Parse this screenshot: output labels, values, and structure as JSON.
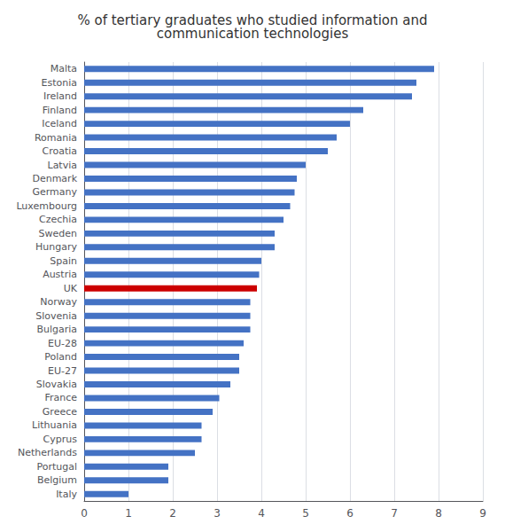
{
  "chart_data": {
    "type": "bar",
    "orientation": "horizontal",
    "title": "% of tertiary graduates who studied information and\ncommunication technologies",
    "categories": [
      "Malta",
      "Estonia",
      "Ireland",
      "Finland",
      "Iceland",
      "Romania",
      "Croatia",
      "Latvia",
      "Denmark",
      "Germany",
      "Luxembourg",
      "Czechia",
      "Sweden",
      "Hungary",
      "Spain",
      "Austria",
      "UK",
      "Norway",
      "Slovenia",
      "Bulgaria",
      "EU-28",
      "Poland",
      "EU-27",
      "Slovakia",
      "France",
      "Greece",
      "Lithuania",
      "Cyprus",
      "Netherlands",
      "Portugal",
      "Belgium",
      "Italy"
    ],
    "values": [
      7.9,
      7.5,
      7.4,
      6.3,
      6.0,
      5.7,
      5.5,
      5.0,
      4.8,
      4.75,
      4.65,
      4.5,
      4.3,
      4.3,
      4.0,
      3.95,
      3.9,
      3.75,
      3.75,
      3.75,
      3.6,
      3.5,
      3.5,
      3.3,
      3.05,
      2.9,
      2.65,
      2.65,
      2.5,
      1.9,
      1.9,
      1.0
    ],
    "colors": [
      "#4472C4",
      "#4472C4",
      "#4472C4",
      "#4472C4",
      "#4472C4",
      "#4472C4",
      "#4472C4",
      "#4472C4",
      "#4472C4",
      "#4472C4",
      "#4472C4",
      "#4472C4",
      "#4472C4",
      "#4472C4",
      "#4472C4",
      "#4472C4",
      "#CC0000",
      "#4472C4",
      "#4472C4",
      "#4472C4",
      "#4472C4",
      "#4472C4",
      "#4472C4",
      "#4472C4",
      "#4472C4",
      "#4472C4",
      "#4472C4",
      "#4472C4",
      "#4472C4",
      "#4472C4",
      "#4472C4",
      "#4472C4"
    ],
    "xlim": [
      0,
      9
    ],
    "xticks": [
      0,
      1,
      2,
      3,
      4,
      5,
      6,
      7,
      8,
      9
    ],
    "grid": true
  }
}
